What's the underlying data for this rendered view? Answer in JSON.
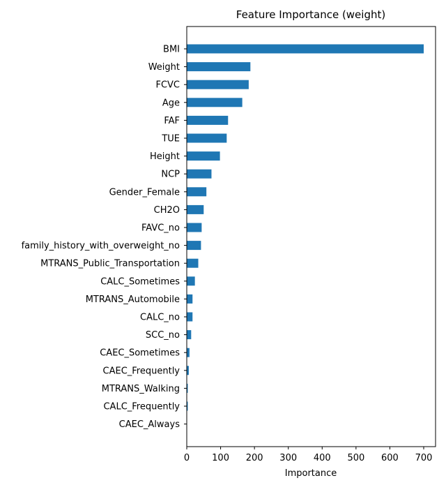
{
  "chart_data": {
    "type": "bar",
    "orientation": "horizontal",
    "title": "Feature Importance (weight)",
    "xlabel": "Importance",
    "ylabel": "",
    "xlim": [
      0,
      735
    ],
    "xticks": [
      0,
      100,
      200,
      300,
      400,
      500,
      600,
      700
    ],
    "grid": false,
    "bar_color": "#1f77b4",
    "categories": [
      "BMI",
      "Weight",
      "FCVC",
      "Age",
      "FAF",
      "TUE",
      "Height",
      "NCP",
      "Gender_Female",
      "CH2O",
      "FAVC_no",
      "family_history_with_overweight_no",
      "MTRANS_Public_Transportation",
      "CALC_Sometimes",
      "MTRANS_Automobile",
      "CALC_no",
      "SCC_no",
      "CAEC_Sometimes",
      "CAEC_Frequently",
      "MTRANS_Walking",
      "CALC_Frequently",
      "CAEC_Always"
    ],
    "values": [
      700,
      188,
      183,
      164,
      122,
      118,
      98,
      73,
      58,
      50,
      44,
      42,
      34,
      24,
      17,
      17,
      13,
      8,
      6,
      3,
      3,
      1
    ]
  }
}
